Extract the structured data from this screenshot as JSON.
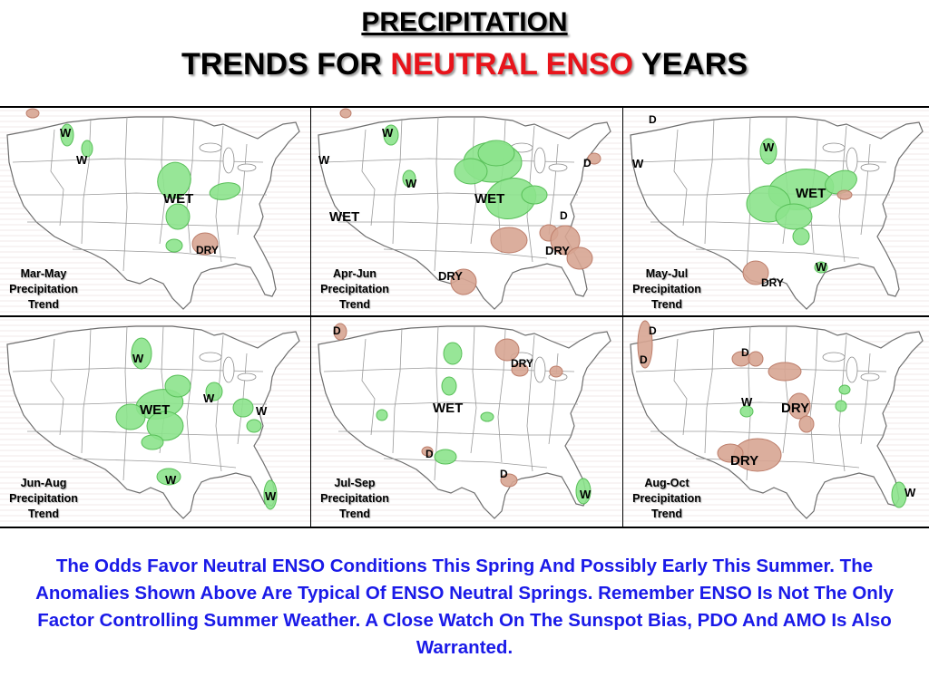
{
  "header": {
    "title_line1": "PRECIPITATION",
    "title_line2_part1": "TRENDS FOR",
    "title_line2_red": "NEUTRAL ENSO",
    "title_line2_part3": "YEARS"
  },
  "colors": {
    "wet": "#8ce38c",
    "wet_dark": "#58bf58",
    "dry": "#d7a592",
    "dry_dark": "#bd7e6b",
    "title_red": "#e8141b",
    "caption_blue": "#1a1ae8"
  },
  "panels": [
    {
      "label": "Mar-May\nPrecipitation\nTrend",
      "labels": [
        {
          "text": "W"
        },
        {
          "text": "W"
        },
        {
          "text": "WET"
        },
        {
          "text": "DRY"
        }
      ]
    },
    {
      "label": "Apr-Jun\nPrecipitation\nTrend",
      "labels": [
        {
          "text": "W"
        },
        {
          "text": "W"
        },
        {
          "text": "W"
        },
        {
          "text": "D"
        },
        {
          "text": "WET"
        },
        {
          "text": "WET"
        },
        {
          "text": "D"
        },
        {
          "text": "DRY"
        },
        {
          "text": "DRY"
        }
      ]
    },
    {
      "label": "May-Jul\nPrecipitation\nTrend",
      "labels": [
        {
          "text": "D"
        },
        {
          "text": "W"
        },
        {
          "text": "W"
        },
        {
          "text": "WET"
        },
        {
          "text": "W"
        },
        {
          "text": "DRY"
        }
      ]
    },
    {
      "label": "Jun-Aug\nPrecipitation\nTrend",
      "labels": [
        {
          "text": "W"
        },
        {
          "text": "W"
        },
        {
          "text": "WET"
        },
        {
          "text": "W"
        },
        {
          "text": "W"
        },
        {
          "text": "W"
        }
      ]
    },
    {
      "label": "Jul-Sep\nPrecipitation\nTrend",
      "labels": [
        {
          "text": "D"
        },
        {
          "text": "DRY"
        },
        {
          "text": "WET"
        },
        {
          "text": "D"
        },
        {
          "text": "D"
        },
        {
          "text": "W"
        }
      ]
    },
    {
      "label": "Aug-Oct\nPrecipitation\nTrend",
      "labels": [
        {
          "text": "D"
        },
        {
          "text": "D"
        },
        {
          "text": "D"
        },
        {
          "text": "W"
        },
        {
          "text": "DRY"
        },
        {
          "text": "DRY"
        },
        {
          "text": "W"
        }
      ]
    }
  ],
  "caption": "The Odds Favor Neutral ENSO Conditions This Spring And Possibly Early This Summer. The Anomalies Shown Above Are Typical Of ENSO Neutral Springs. Remember ENSO Is Not The Only Factor Controlling Summer Weather. A Close Watch On The Sunspot Bias, PDO And AMO Is Also Warranted."
}
